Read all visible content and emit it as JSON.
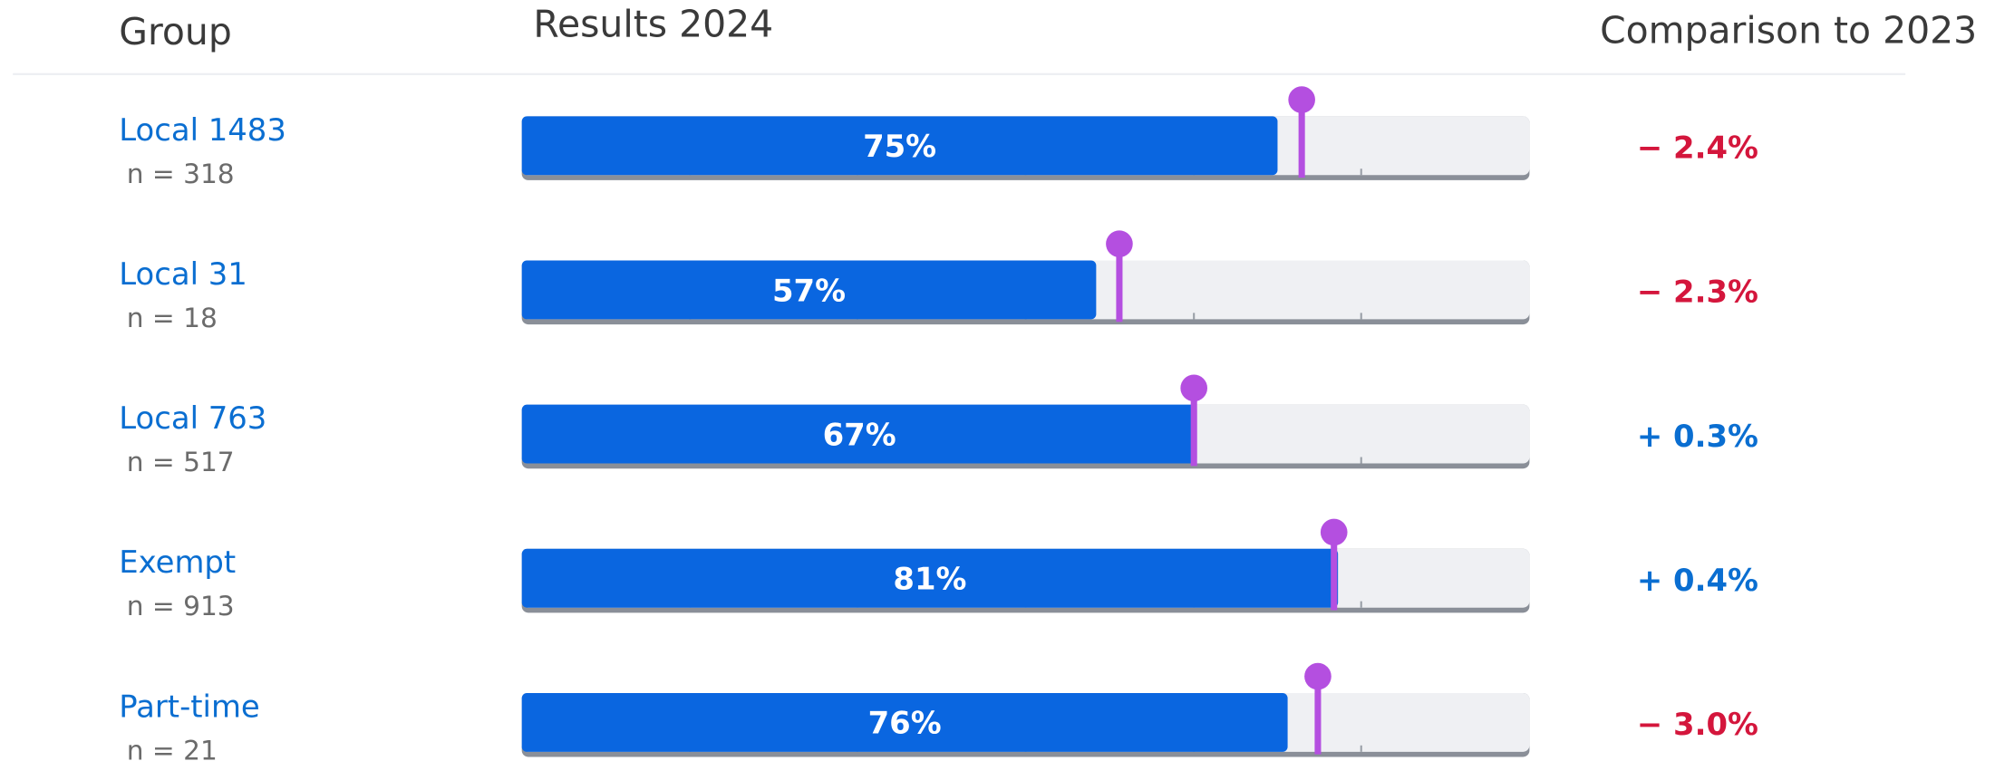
{
  "chart_data": {
    "type": "bullet",
    "headers": [
      "Group",
      "Results 2024",
      "Comparison to 2023"
    ],
    "xlim": [
      0,
      100
    ],
    "xticks": [
      16.7,
      33.3,
      50,
      66.7,
      83.3
    ],
    "bar_color": "#0a66e0",
    "marker_color": "#b44fe0",
    "rows": [
      {
        "group": "Local 1483",
        "n": "n = 318",
        "value": 75,
        "value_label": "75%",
        "previous": 77.4,
        "change": -2.4,
        "change_label": "− 2.4%"
      },
      {
        "group": "Local 31",
        "n": "n = 18",
        "value": 57,
        "value_label": "57%",
        "previous": 59.3,
        "change": -2.3,
        "change_label": "− 2.3%"
      },
      {
        "group": "Local 763",
        "n": "n = 517",
        "value": 67,
        "value_label": "67%",
        "previous": 66.7,
        "change": 0.3,
        "change_label": "+ 0.3%"
      },
      {
        "group": "Exempt",
        "n": "n = 913",
        "value": 81,
        "value_label": "81%",
        "previous": 80.6,
        "change": 0.4,
        "change_label": "+ 0.4%"
      },
      {
        "group": "Part-time",
        "n": "n = 21",
        "value": 76,
        "value_label": "76%",
        "previous": 79.0,
        "change": -3.0,
        "change_label": "− 3.0%"
      }
    ]
  }
}
